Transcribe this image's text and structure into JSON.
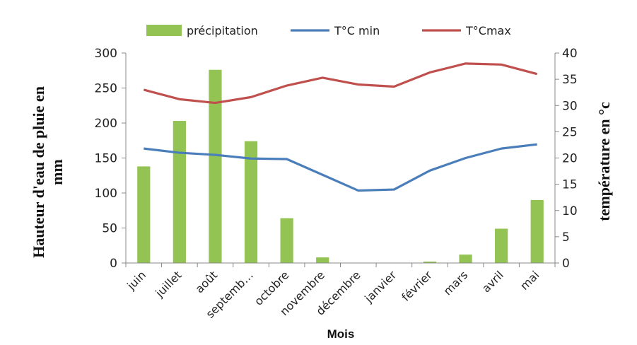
{
  "chart_data": {
    "type": "bar+line",
    "categories": [
      "juin",
      "juillet",
      "août",
      "septemb…",
      "octobre",
      "novembre",
      "décembre",
      "janvier",
      "février",
      "mars",
      "avril",
      "mai"
    ],
    "series": [
      {
        "name": "précipitation",
        "type": "bar",
        "axis": "left",
        "color": "#92c353",
        "values": [
          138,
          203,
          276,
          174,
          64,
          8,
          0,
          0,
          2,
          12,
          49,
          90
        ]
      },
      {
        "name": "T°C min",
        "type": "line",
        "axis": "right",
        "color": "#4a7ebb",
        "values": [
          21.8,
          21.0,
          20.6,
          19.9,
          19.8,
          16.8,
          13.8,
          14.0,
          17.6,
          20.0,
          21.8,
          22.6
        ]
      },
      {
        "name": "T°Cmax",
        "type": "line",
        "axis": "right",
        "color": "#c0504d",
        "values": [
          33.0,
          31.2,
          30.5,
          31.6,
          33.8,
          35.3,
          34.0,
          33.6,
          36.3,
          38.0,
          37.8,
          36.0
        ]
      }
    ],
    "xlabel": "Mois",
    "ylabel": "Hauteur d'eau de pluie en mm",
    "ylabel_lines": [
      "Hauteur d'eau de pluie en",
      "mm"
    ],
    "y2label": "température en °c",
    "ylim": [
      0,
      300
    ],
    "yticks": [
      "0",
      "50",
      "100",
      "150",
      "200",
      "250",
      "300"
    ],
    "y2lim": [
      0,
      40
    ],
    "y2ticks": [
      "0",
      "5",
      "10",
      "15",
      "20",
      "25",
      "30",
      "35",
      "40"
    ],
    "grid": false,
    "legend": "top"
  }
}
